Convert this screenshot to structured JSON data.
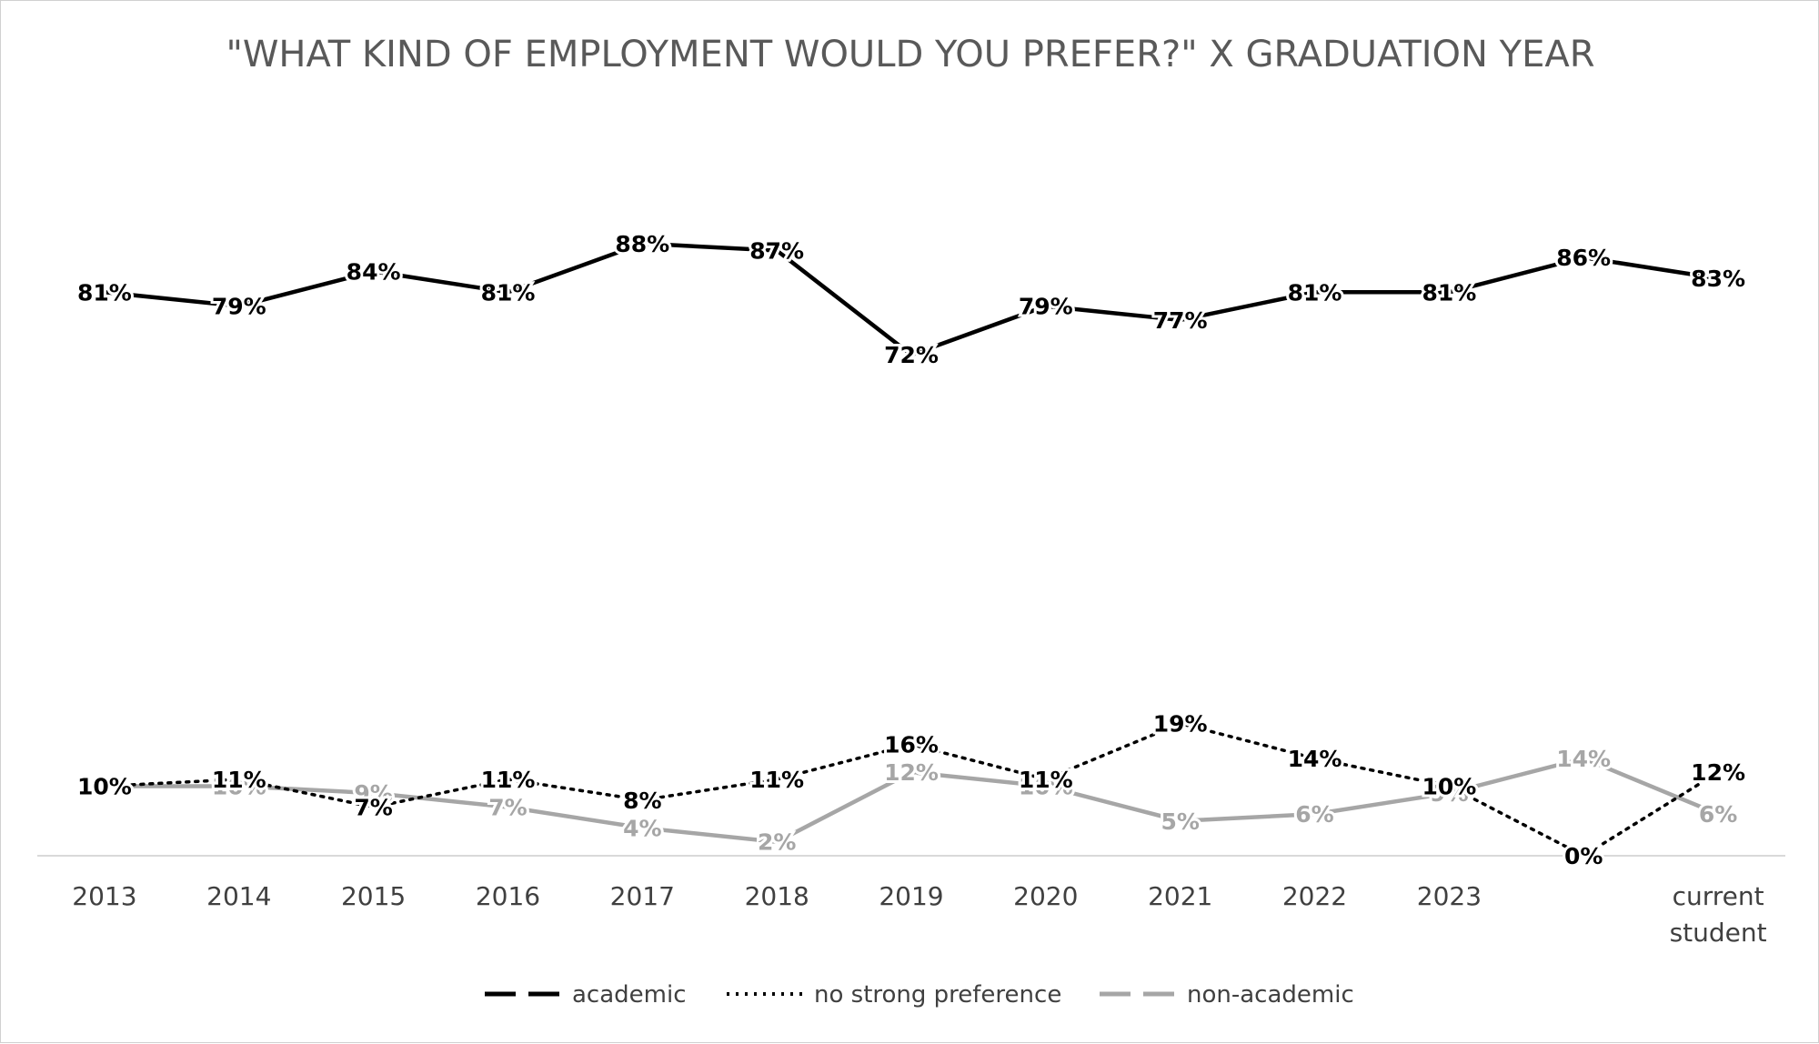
{
  "chart_data": {
    "type": "line",
    "title": "\"WHAT KIND OF EMPLOYMENT WOULD YOU PREFER?\" X GRADUATION YEAR",
    "xlabel": "",
    "ylabel": "",
    "categories": [
      "2013",
      "2014",
      "2015",
      "2016",
      "2017",
      "2018",
      "2019",
      "2020",
      "2021",
      "2022",
      "2023",
      "",
      "current student"
    ],
    "ylim": [
      0,
      100
    ],
    "grid": false,
    "legend_position": "bottom",
    "series": [
      {
        "name": "academic",
        "color": "#000000",
        "style": "solid",
        "values": [
          81,
          79,
          84,
          81,
          88,
          87,
          72,
          79,
          77,
          81,
          81,
          86,
          83
        ],
        "labels": [
          "81%",
          "79%",
          "84%",
          "81%",
          "88%",
          "87%",
          "72%",
          "79%",
          "77%",
          "81%",
          "81%",
          "86%",
          "83%"
        ]
      },
      {
        "name": "no strong preference",
        "color": "#000000",
        "style": "dotted",
        "values": [
          10,
          11,
          7,
          11,
          8,
          11,
          16,
          11,
          19,
          14,
          10,
          0,
          12
        ],
        "labels": [
          "10%",
          "11%",
          "7%",
          "11%",
          "8%",
          "11%",
          "16%",
          "11%",
          "19%",
          "14%",
          "10%",
          "0%",
          "12%"
        ]
      },
      {
        "name": "non-academic",
        "color": "#a6a6a6",
        "style": "solid",
        "values": [
          10,
          10,
          9,
          7,
          4,
          2,
          12,
          10,
          5,
          6,
          9,
          14,
          6
        ],
        "labels": [
          "10%",
          "10%",
          "9%",
          "7%",
          "4%",
          "2%",
          "12%",
          "10%",
          "5%",
          "6%",
          "9%",
          "14%",
          "6%"
        ]
      }
    ]
  }
}
